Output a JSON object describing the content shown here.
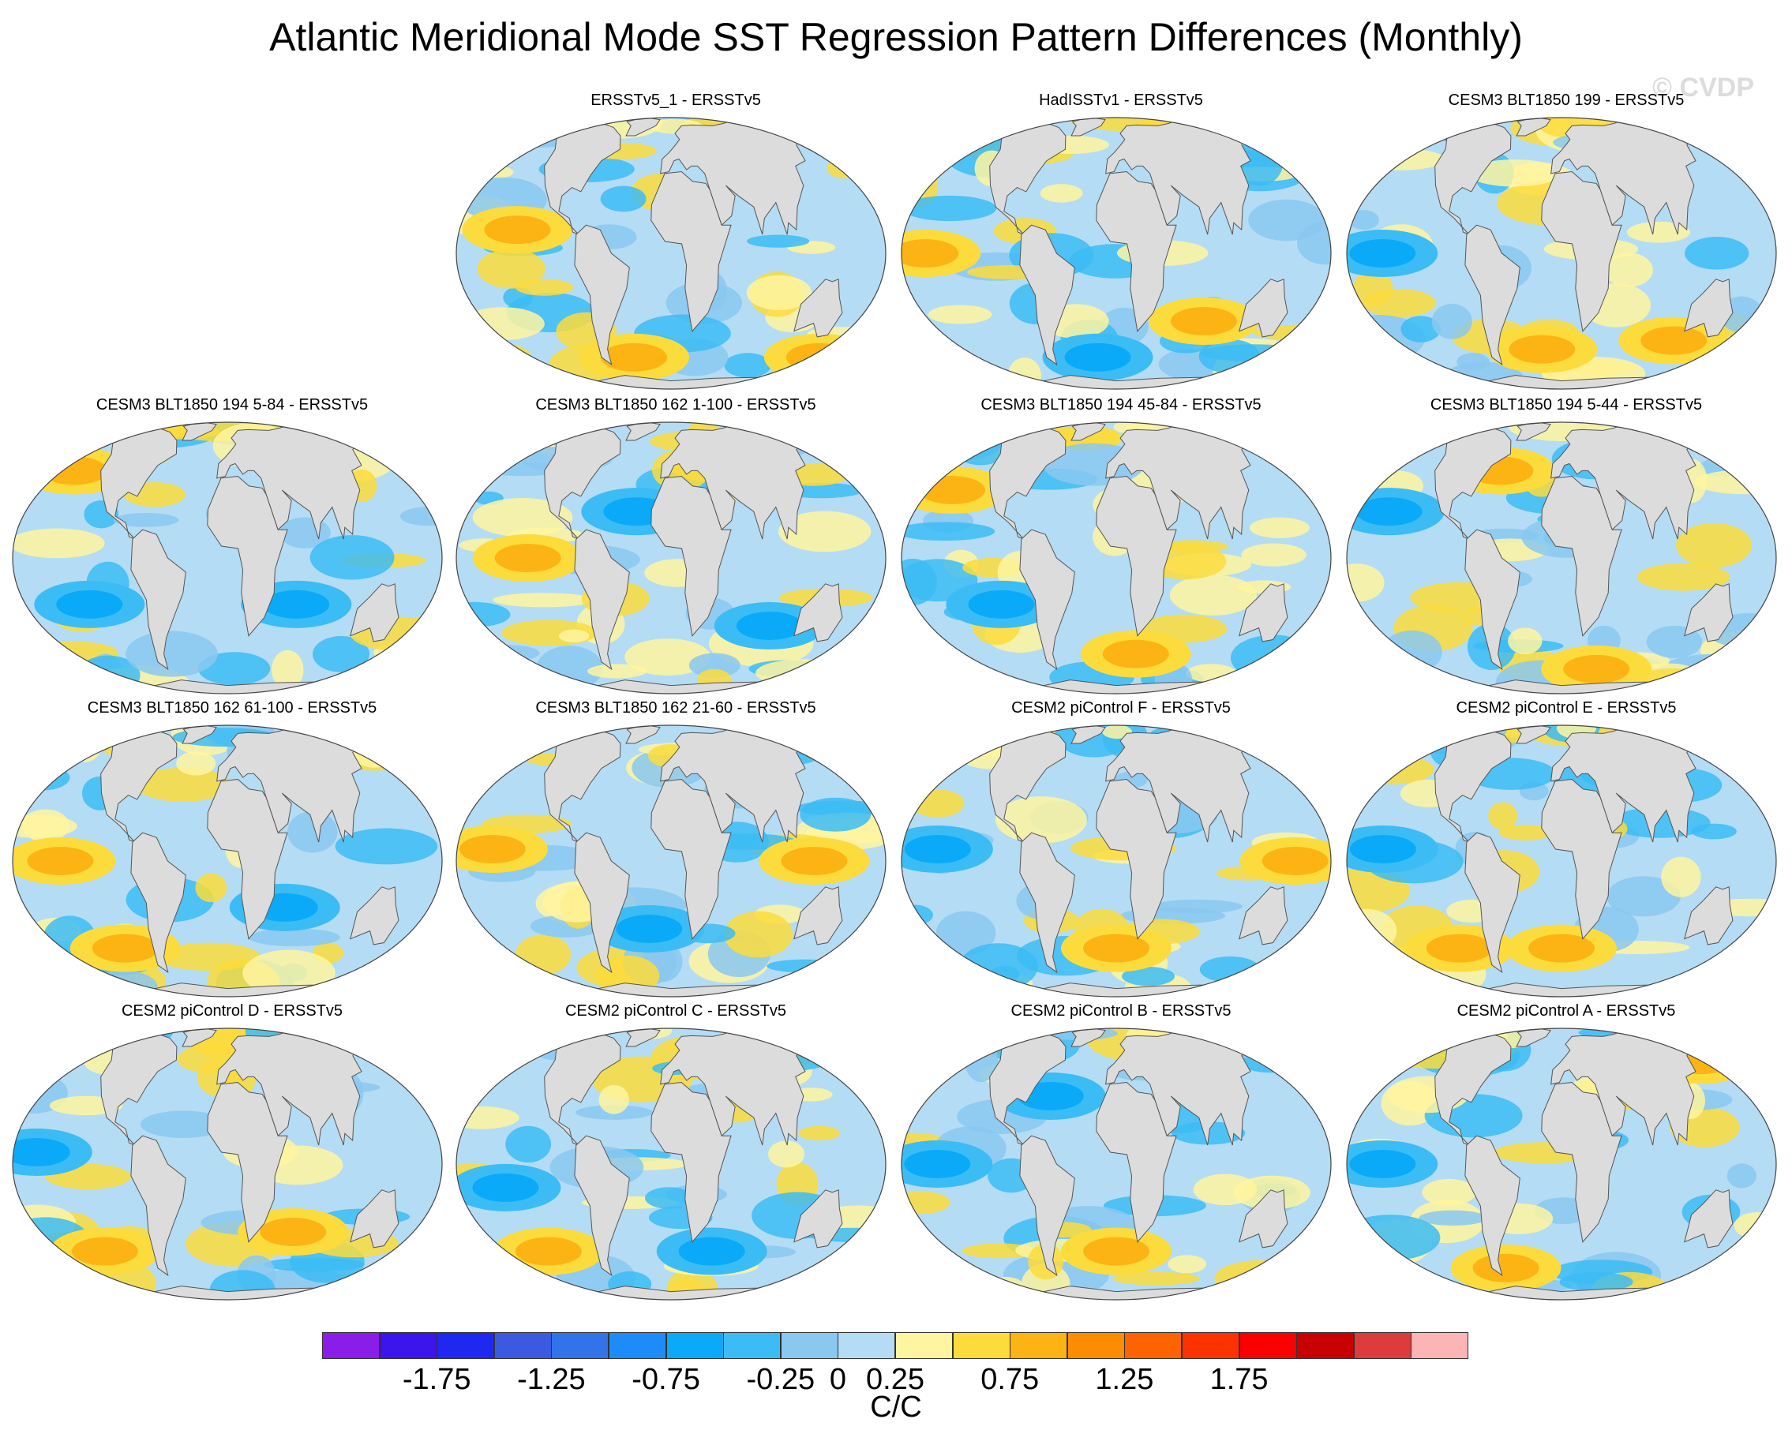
{
  "chart_data": {
    "type": "heatmap",
    "title": "Atlantic Meridional Mode SST Regression Pattern Differences (Monthly)",
    "watermark": "© CVDP",
    "panels": [
      {
        "title": "ERSSTv5_1 - ERSSTv5",
        "pattern": "weak mixed, warm eastern Pacific and Southern Ocean bands"
      },
      {
        "title": "HadISSTv1 - ERSSTv5",
        "pattern": "weak mixed, warm tropical Pacific, cool Southern Ocean patches"
      },
      {
        "title": "CESM3 BLT1850 199 - ERSSTv5",
        "pattern": "cool tropical Pacific, strong warm South Atlantic"
      },
      {
        "title": "CESM3 BLT1850 194 5-84 - ERSSTv5",
        "pattern": "mostly cool, warm North Pacific edges"
      },
      {
        "title": "CESM3 BLT1850 162 1-100 - ERSSTv5",
        "pattern": "warm eastern Pacific, cool Atlantic"
      },
      {
        "title": "CESM3 BLT1850 194 45-84 - ERSSTv5",
        "pattern": "mixed, warm Southern Ocean"
      },
      {
        "title": "CESM3 BLT1850 194 5-44 - ERSSTv5",
        "pattern": "cool basins, warm Southern Ocean band"
      },
      {
        "title": "CESM3 BLT1850 162 61-100 - ERSSTv5",
        "pattern": "strong warm eastern Pacific"
      },
      {
        "title": "CESM3 BLT1850 162 21-60 - ERSSTv5",
        "pattern": "warm equatorial Pacific, cool elsewhere"
      },
      {
        "title": "CESM2 piControl F - ERSSTv5",
        "pattern": "strong cool Pacific, warm South Atlantic"
      },
      {
        "title": "CESM2 piControl E - ERSSTv5",
        "pattern": "cool Pacific, warm southeast Pacific and South Atlantic"
      },
      {
        "title": "CESM2 piControl D - ERSSTv5",
        "pattern": "cool tropical Pacific, warm South Pacific"
      },
      {
        "title": "CESM2 piControl C - ERSSTv5",
        "pattern": "mostly cool, weak warm patches"
      },
      {
        "title": "CESM2 piControl B - ERSSTv5",
        "pattern": "cool Pacific, warm South Atlantic"
      },
      {
        "title": "CESM2 piControl A - ERSSTv5",
        "pattern": "mixed, warm southern midlatitudes"
      }
    ],
    "colorbar": {
      "unit": "C/C",
      "levels": [
        -2.0,
        -1.75,
        -1.5,
        -1.25,
        -1.0,
        -0.75,
        -0.5,
        -0.25,
        0,
        0.25,
        0.5,
        0.75,
        1.0,
        1.25,
        1.5,
        1.75,
        2.0
      ],
      "tick_labels": [
        "-1.75",
        "-1.25",
        "-0.75",
        "-0.25",
        "0",
        "0.25",
        "0.75",
        "1.25",
        "1.75"
      ],
      "colors": [
        "#8a1ee8",
        "#3c14ec",
        "#1e28f0",
        "#3c5ae0",
        "#3273ea",
        "#1e8cf8",
        "#0aaaf8",
        "#3cbcf5",
        "#8ac8f0",
        "#b4dcf4",
        "#fff5a0",
        "#fcdc3c",
        "#fcb414",
        "#fc8c00",
        "#fc6400",
        "#fc3200",
        "#fa0000",
        "#c80000",
        "#dc3c3c",
        "#fcb4b4"
      ]
    }
  }
}
